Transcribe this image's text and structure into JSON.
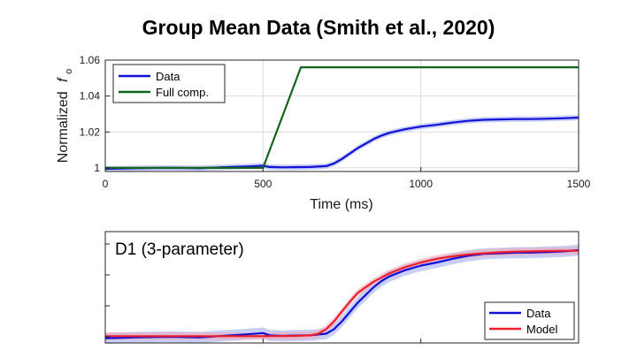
{
  "slide": {
    "title": "Group Mean Data (Smith et al., 2020)"
  },
  "colors": {
    "data": "#1010d8",
    "data_band": "#9aa8f0",
    "full_comp": "#11661a",
    "model": "#ee1c2c",
    "model_band": "#f2a8b0",
    "axis": "#262626",
    "grid": "#dcdcdc"
  },
  "chart_data": [
    {
      "type": "line",
      "title": "",
      "xlabel": "Time (ms)",
      "ylabel_main": "Normalized",
      "ylabel_symbol": "f",
      "ylabel_sub": "o",
      "xlim": [
        0,
        1500
      ],
      "ylim": [
        0.998,
        1.06
      ],
      "xticks": [
        0,
        500,
        1000,
        1500
      ],
      "xtick_labels": [
        "0",
        "500",
        "1000",
        "1500"
      ],
      "yticks": [
        1,
        1.02,
        1.04,
        1.06
      ],
      "ytick_labels": [
        "1",
        "1.02",
        "1.04",
        "1.06"
      ],
      "grid": true,
      "legend_position": "top-left",
      "series": [
        {
          "name": "Data",
          "color": "#1010d8",
          "x": [
            0,
            100,
            200,
            300,
            400,
            450,
            500,
            520,
            560,
            600,
            650,
            700,
            725,
            750,
            775,
            800,
            825,
            850,
            875,
            900,
            950,
            1000,
            1050,
            1100,
            1150,
            1200,
            1250,
            1300,
            1350,
            1400,
            1450,
            1500
          ],
          "y": [
            0.9995,
            0.9998,
            1.0,
            0.9998,
            1.0005,
            1.0008,
            1.0012,
            1.0005,
            1.0003,
            1.0004,
            1.0005,
            1.001,
            1.0025,
            1.005,
            1.008,
            1.011,
            1.0135,
            1.016,
            1.018,
            1.0195,
            1.0215,
            1.023,
            1.024,
            1.0252,
            1.0262,
            1.0268,
            1.027,
            1.0272,
            1.0272,
            1.0274,
            1.0276,
            1.028
          ],
          "band": 0.0015
        },
        {
          "name": "Full comp.",
          "color": "#11661a",
          "x": [
            0,
            500,
            620,
            1500
          ],
          "y": [
            1.0,
            1.0,
            1.056,
            1.056
          ]
        }
      ]
    },
    {
      "type": "line",
      "title": "D1 (3-parameter)",
      "xlim": [
        0,
        1500
      ],
      "ylim": [
        0.998,
        1.034
      ],
      "grid": false,
      "legend_position": "bottom-right",
      "series": [
        {
          "name": "Data",
          "color": "#1010d8",
          "x": [
            0,
            100,
            200,
            300,
            400,
            450,
            500,
            520,
            560,
            600,
            650,
            700,
            725,
            750,
            775,
            800,
            825,
            850,
            875,
            900,
            950,
            1000,
            1050,
            1100,
            1150,
            1200,
            1250,
            1300,
            1350,
            1400,
            1450,
            1500
          ],
          "y": [
            0.9995,
            0.9998,
            1.0,
            0.9998,
            1.0005,
            1.0008,
            1.0012,
            1.0005,
            1.0003,
            1.0004,
            1.0005,
            1.001,
            1.0025,
            1.005,
            1.008,
            1.011,
            1.0135,
            1.016,
            1.018,
            1.0195,
            1.0215,
            1.023,
            1.024,
            1.0252,
            1.0262,
            1.0268,
            1.027,
            1.0272,
            1.0272,
            1.0274,
            1.0276,
            1.028
          ],
          "band": 0.0018
        },
        {
          "name": "Model",
          "color": "#ee1c2c",
          "x": [
            0,
            100,
            200,
            300,
            400,
            500,
            600,
            650,
            675,
            700,
            725,
            750,
            775,
            800,
            850,
            900,
            950,
            1000,
            1050,
            1100,
            1150,
            1200,
            1250,
            1300,
            1350,
            1400,
            1450,
            1500
          ],
          "y": [
            1.0002,
            1.0002,
            1.0002,
            1.0002,
            1.0002,
            1.0002,
            1.0003,
            1.0005,
            1.001,
            1.0025,
            1.005,
            1.0082,
            1.0113,
            1.0142,
            1.0178,
            1.0205,
            1.0225,
            1.024,
            1.0252,
            1.026,
            1.0266,
            1.027,
            1.0273,
            1.0275,
            1.0276,
            1.0277,
            1.0278,
            1.0278
          ],
          "band": 0.0012
        }
      ]
    }
  ]
}
